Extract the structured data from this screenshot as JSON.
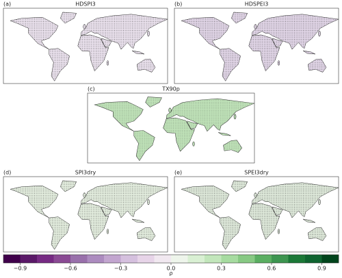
{
  "panels": [
    {
      "label": "(a)",
      "title": "HDSPI3"
    },
    {
      "label": "(b)",
      "title": "HDSPEI3"
    },
    {
      "label": "(c)",
      "title": "TX90p"
    },
    {
      "label": "(d)",
      "title": "SPI3dry"
    },
    {
      "label": "(e)",
      "title": "SPEI3dry"
    }
  ],
  "colorbar": {
    "label": "ρ",
    "lim": [
      -1,
      1
    ],
    "ticks": [
      {
        "value": -0.9,
        "label": "−0.9"
      },
      {
        "value": -0.6,
        "label": "−0.6"
      },
      {
        "value": -0.3,
        "label": "−0.3"
      },
      {
        "value": 0,
        "label": "0.0"
      },
      0.3,
      0.6,
      0.9
    ],
    "colors": [
      "#40004b",
      "#5a1868",
      "#762a83",
      "#8a4a94",
      "#9970ab",
      "#ac8bbf",
      "#c2a5cf",
      "#d5c0de",
      "#e7d4e8",
      "#f1e8f0",
      "#eef5eb",
      "#d9f0d3",
      "#c2e6bb",
      "#a6dba0",
      "#87c983",
      "#5aae61",
      "#3d9550",
      "#1b7837",
      "#0f6430",
      "#00441b"
    ]
  }
}
